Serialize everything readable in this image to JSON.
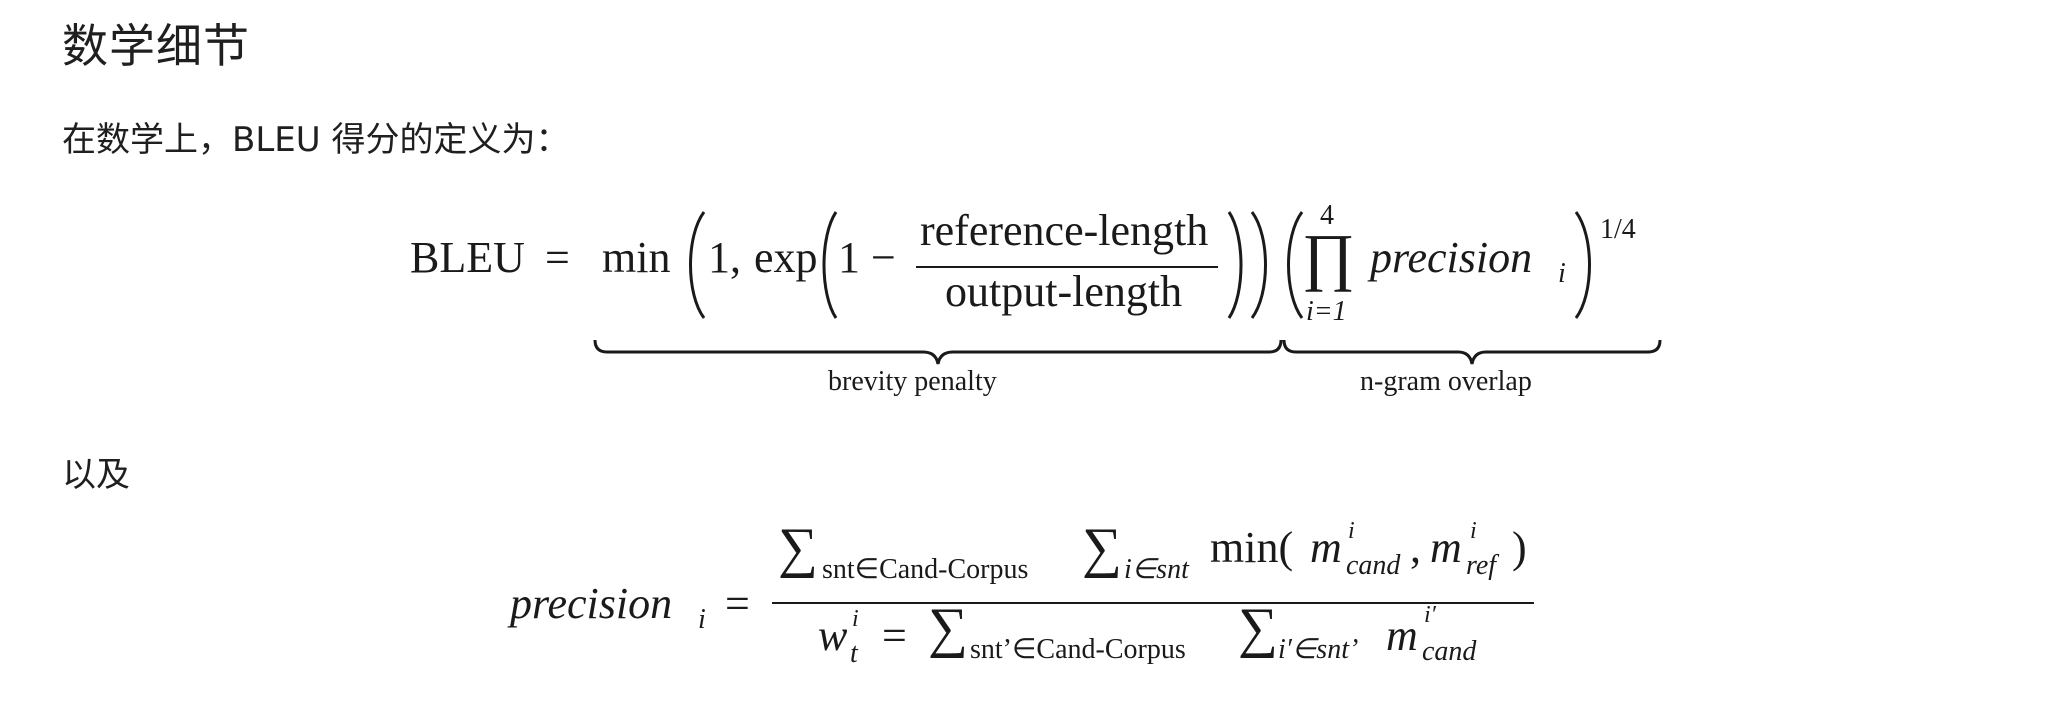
{
  "heading": "数学细节",
  "intro": "在数学上，BLEU 得分的定义为：",
  "and_text": "以及",
  "eq1": {
    "lhs": "BLEU",
    "equals": "=",
    "min": "min",
    "one_comma": "1,",
    "exp": "exp",
    "one_minus": "1 −",
    "numerator": "reference-length",
    "denominator": "output-length",
    "prod_upper": "4",
    "prod_symbol": "∏",
    "prod_lower": "i=1",
    "precision": "precision",
    "precision_sub": "i",
    "exponent": "1/4",
    "brace1_label": "brevity penalty",
    "brace2_label": "n-gram overlap"
  },
  "eq2": {
    "lhs": "precision",
    "lhs_sub": "i",
    "equals": "=",
    "num_sum1_sub": "snt∈Cand-Corpus",
    "num_sum2_sub": "i∈snt",
    "num_min": "min(",
    "m": "m",
    "m_cand_sup": "i",
    "m_cand_sub": "cand",
    "comma": ",",
    "m_ref_sup": "i",
    "m_ref_sub": "ref",
    "close_paren": ")",
    "den_w": "w",
    "den_w_sup": "i",
    "den_w_sub": "t",
    "den_equals": "=",
    "den_sum1_sub": "snt’∈Cand-Corpus",
    "den_sum2_sub": "i′∈snt’",
    "den_m_sup": "i′",
    "den_m_sub": "cand",
    "sum_symbol": "∑"
  }
}
